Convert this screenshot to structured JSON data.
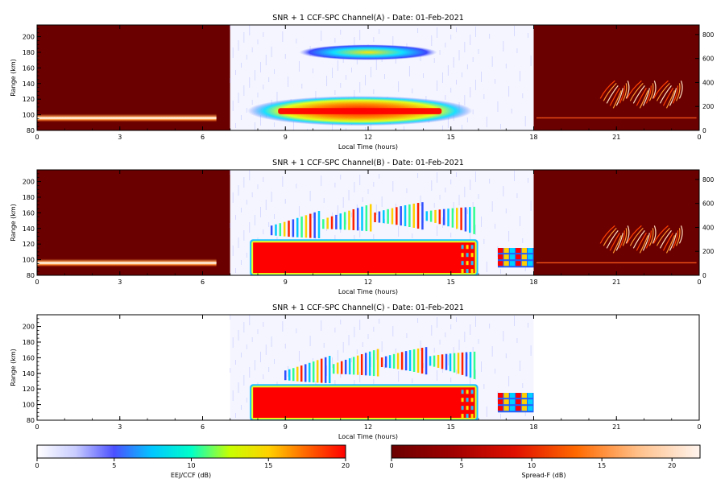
{
  "colors": {
    "dark_red": "#6b0000",
    "red": "#ff0000",
    "eej_scale": [
      "#ffffff",
      "#c8ccff",
      "#4b50ff",
      "#00c8ff",
      "#00ffc8",
      "#c8ff00",
      "#ffd200",
      "#ff6400",
      "#ff0000"
    ],
    "spread_scale": [
      "#6b0000",
      "#a00000",
      "#e01000",
      "#ff6a00",
      "#ffc08a",
      "#fff4ee"
    ]
  },
  "colorbars": [
    {
      "label": "EEJ/CCF (dB)",
      "ticks": [
        "0",
        "5",
        "10",
        "15",
        "20"
      ],
      "range": [
        0,
        20
      ]
    },
    {
      "label": "Spread-F (dB)",
      "ticks": [
        "0",
        "5",
        "10",
        "15",
        "20"
      ],
      "range": [
        0,
        22
      ]
    }
  ],
  "chart_data": [
    {
      "type": "heatmap",
      "title": "SNR + 1 CCF-SPC Channel(A) - Date: 01-Feb-2021",
      "xlabel": "Local Time (hours)",
      "ylabel": "Range (km)",
      "x_ticks": [
        "0",
        "3",
        "6",
        "9",
        "12",
        "15",
        "18",
        "21",
        "0"
      ],
      "y_ticks": [
        "80",
        "100",
        "120",
        "140",
        "160",
        "180",
        "200"
      ],
      "right_ticks": [
        "0",
        "200",
        "400",
        "600",
        "800"
      ],
      "xlim": [
        0,
        24
      ],
      "ylim": [
        80,
        215
      ],
      "right_ylim": [
        0,
        880
      ],
      "night_segments": [
        [
          0,
          7
        ],
        [
          18,
          24
        ]
      ],
      "day_segment": [
        7,
        18
      ],
      "features": [
        {
          "kind": "eej",
          "t0": 7.8,
          "t1": 15.6,
          "r0": 90,
          "r1": 120,
          "peak_db": 20
        },
        {
          "kind": "eej",
          "t0": 9.5,
          "t1": 14.5,
          "r0": 170,
          "r1": 190,
          "peak_db": 14
        },
        {
          "kind": "spreadf_layer",
          "t0": 0,
          "t1": 6.5,
          "range_km": 96,
          "peak_db": 18
        },
        {
          "kind": "spreadf_plume",
          "t0": 20.4,
          "t1": 23.3,
          "height_right": 320,
          "peak_db": 16
        }
      ]
    },
    {
      "type": "heatmap",
      "title": "SNR + 1 CCF-SPC Channel(B) - Date: 01-Feb-2021",
      "xlabel": "Local Time (hours)",
      "ylabel": "Range (km)",
      "x_ticks": [
        "0",
        "3",
        "6",
        "9",
        "12",
        "15",
        "18",
        "21",
        "0"
      ],
      "y_ticks": [
        "80",
        "100",
        "120",
        "140",
        "160",
        "180",
        "200"
      ],
      "right_ticks": [
        "0",
        "200",
        "400",
        "600",
        "800"
      ],
      "xlim": [
        0,
        24
      ],
      "ylim": [
        80,
        215
      ],
      "right_ylim": [
        0,
        880
      ],
      "night_segments": [
        [
          0,
          7
        ],
        [
          18,
          24
        ]
      ],
      "day_segment": [
        7,
        18
      ],
      "features": [
        {
          "kind": "eej",
          "t0": 7.8,
          "t1": 15.9,
          "r0": 82,
          "r1": 123,
          "peak_db": 20
        },
        {
          "kind": "eej",
          "t0": 16.7,
          "t1": 18,
          "r0": 90,
          "r1": 115,
          "peak_db": 18
        },
        {
          "kind": "ccf_band",
          "t0": 8.5,
          "t1": 16.0,
          "r0": 132,
          "r1": 160,
          "peak_db": 15
        },
        {
          "kind": "spreadf_layer",
          "t0": 0,
          "t1": 6.5,
          "range_km": 96,
          "peak_db": 18
        },
        {
          "kind": "spreadf_plume",
          "t0": 20.4,
          "t1": 23.3,
          "height_right": 320,
          "peak_db": 16
        }
      ]
    },
    {
      "type": "heatmap",
      "title": "SNR + 1 CCF-SPC Channel(C) - Date: 01-Feb-2021",
      "xlabel": "Local Time (hours)",
      "ylabel": "Range (km)",
      "x_ticks": [
        "0",
        "3",
        "6",
        "9",
        "12",
        "15",
        "18",
        "21",
        "0"
      ],
      "y_ticks": [
        "80",
        "100",
        "120",
        "140",
        "160",
        "180",
        "200"
      ],
      "right_ticks": [],
      "xlim": [
        0,
        24
      ],
      "ylim": [
        80,
        215
      ],
      "night_segments": [],
      "day_segment": [
        7,
        18
      ],
      "features": [
        {
          "kind": "eej",
          "t0": 7.8,
          "t1": 15.9,
          "r0": 82,
          "r1": 123,
          "peak_db": 20
        },
        {
          "kind": "eej",
          "t0": 16.7,
          "t1": 18,
          "r0": 90,
          "r1": 115,
          "peak_db": 18
        },
        {
          "kind": "ccf_band",
          "t0": 9.0,
          "t1": 16.0,
          "r0": 132,
          "r1": 160,
          "peak_db": 15
        }
      ]
    }
  ]
}
